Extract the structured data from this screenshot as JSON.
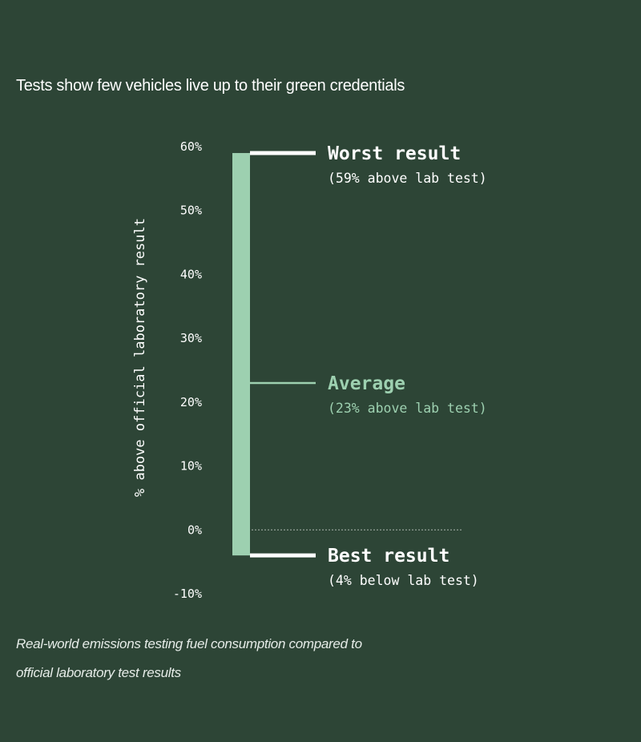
{
  "title": "Tests show few vehicles live up to their green credentials",
  "caption_lines": [
    "Real-world emissions testing fuel consumption compared to",
    "official laboratory test results"
  ],
  "colors": {
    "background": "#2d4536",
    "bar": "#9dd0b0",
    "text": "#ffffff",
    "accent": "#9dd0b0"
  },
  "chart_data": {
    "type": "bar",
    "ylabel": "% above official laboratory result",
    "ylim": [
      -10,
      60
    ],
    "yticks": [
      {
        "value": 60,
        "label": "60%"
      },
      {
        "value": 50,
        "label": "50%"
      },
      {
        "value": 40,
        "label": "40%"
      },
      {
        "value": 30,
        "label": "30%"
      },
      {
        "value": 20,
        "label": "20%"
      },
      {
        "value": 10,
        "label": "10%"
      },
      {
        "value": 0,
        "label": "0%"
      },
      {
        "value": -10,
        "label": "-10%"
      }
    ],
    "range": {
      "min": -4,
      "max": 59
    },
    "zero_line": true,
    "annotations": [
      {
        "key": "worst",
        "value": 59,
        "title": "Worst result",
        "subtitle": "(59% above lab test)",
        "color": "#ffffff"
      },
      {
        "key": "average",
        "value": 23,
        "title": "Average",
        "subtitle": "(23% above lab test)",
        "color": "#9dd0b0"
      },
      {
        "key": "best",
        "value": -4,
        "title": "Best result",
        "subtitle": "(4% below lab test)",
        "color": "#ffffff"
      }
    ]
  }
}
